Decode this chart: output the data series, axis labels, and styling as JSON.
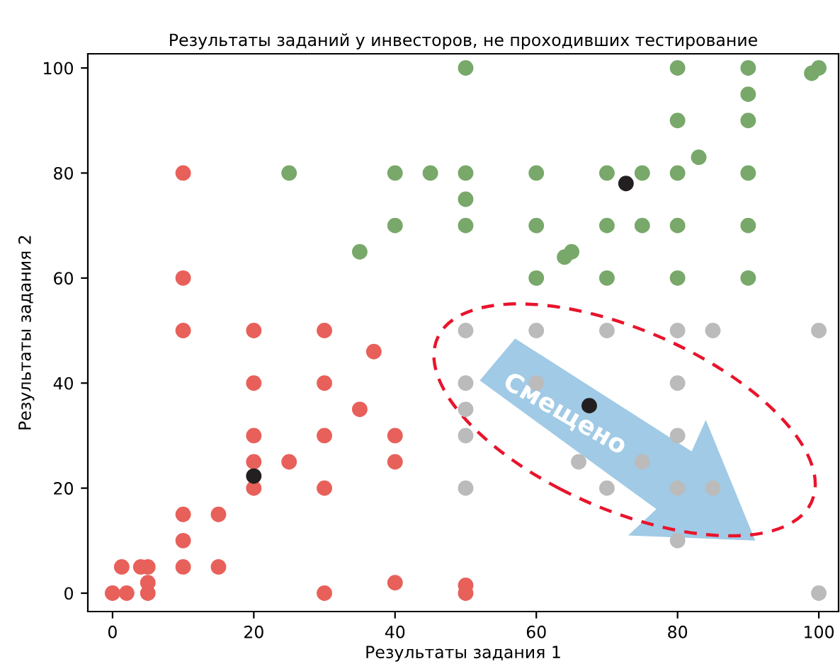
{
  "chart_data": {
    "type": "scatter",
    "title": "Результаты заданий у инвесторов, не проходивших тестирование",
    "xlabel": "Результаты задания 1",
    "ylabel": "Результаты задания 2",
    "xlim": [
      -3.5,
      102.8
    ],
    "ylim": [
      -3.5,
      102.7
    ],
    "xticks": [
      0,
      20,
      40,
      60,
      80,
      100
    ],
    "yticks": [
      0,
      20,
      40,
      60,
      80,
      100
    ],
    "grid": false,
    "legend": false,
    "marker": "circle",
    "series": [
      {
        "color": "#e8605a",
        "x": [
          0,
          1.3,
          2,
          4,
          5,
          5,
          5,
          10,
          10,
          10,
          10,
          10,
          10,
          15,
          15,
          20,
          20,
          20,
          20,
          20,
          25,
          30,
          30,
          30,
          30,
          30,
          35,
          37,
          40,
          40,
          40,
          50,
          50
        ],
        "values": [
          0,
          5,
          0,
          5,
          5,
          2,
          0,
          80,
          60,
          50,
          15,
          10,
          5,
          15,
          5,
          50,
          40,
          30,
          25,
          20,
          25,
          50,
          40,
          30,
          20,
          0,
          35,
          46,
          30,
          25,
          2,
          1.5,
          0
        ]
      },
      {
        "color": "#78a86a",
        "x": [
          25,
          35,
          40,
          40,
          45,
          50,
          50,
          50,
          50,
          60,
          60,
          60,
          64,
          65,
          70,
          70,
          70,
          75,
          75,
          80,
          80,
          80,
          80,
          80,
          83,
          90,
          90,
          90,
          90,
          90,
          90,
          99,
          100
        ],
        "values": [
          80,
          65,
          80,
          70,
          80,
          100,
          80,
          75,
          70,
          80,
          70,
          60,
          64,
          65,
          80,
          70,
          60,
          80,
          70,
          100,
          90,
          80,
          70,
          60,
          83,
          100,
          95,
          90,
          80,
          70,
          60,
          99,
          100
        ]
      },
      {
        "color": "#bbbbbb",
        "x": [
          50,
          50,
          50,
          50,
          50,
          60,
          60,
          66,
          70,
          70,
          75,
          80,
          80,
          80,
          80,
          80,
          85,
          85,
          100,
          100
        ],
        "values": [
          50,
          40,
          35,
          30,
          20,
          50,
          40,
          25,
          50,
          20,
          25,
          50,
          40,
          30,
          20,
          10,
          50,
          20,
          50,
          0
        ]
      },
      {
        "color": "#231f20",
        "x": [
          20,
          67.5,
          72.7
        ],
        "values": [
          22.3,
          35.7,
          78
        ]
      }
    ],
    "annotations": [
      "Смещено"
    ]
  }
}
